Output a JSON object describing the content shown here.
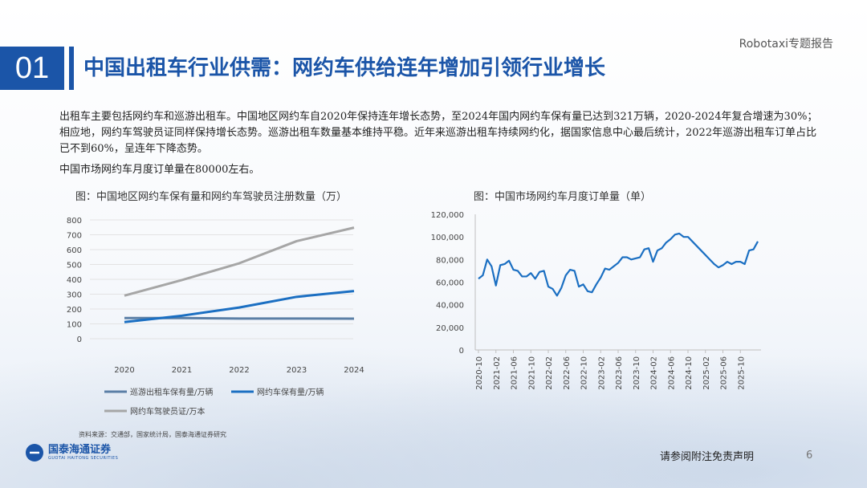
{
  "header": {
    "report_tag": "Robotaxi专题报告",
    "section_number": "01",
    "title": "中国出租车行业供需：网约车供给连年增加引领行业增长"
  },
  "body": {
    "paragraph1": "出租车主要包括网约车和巡游出租车。中国地区网约车自2020年保持连年增长态势，至2024年国内网约车保有量已达到321万辆，2020-2024年复合增速为30%；相应地，网约车驾驶员证同样保持增长态势。巡游出租车数量基本维持平稳。近年来巡游出租车持续网约化，据国家信息中心最后统计，2022年巡游出租车订单占比已不到60%，呈连年下降态势。",
    "paragraph2": "中国市场网约车月度订单量在80000左右。"
  },
  "chart_data": [
    {
      "type": "line",
      "title": "图：中国地区网约车保有量和网约车驾驶员注册数量（万）",
      "categories": [
        "2020",
        "2021",
        "2022",
        "2023",
        "2024"
      ],
      "ylim": [
        0,
        800
      ],
      "yticks": [
        "0",
        "100",
        "200",
        "300",
        "400",
        "500",
        "600",
        "700",
        "800"
      ],
      "grid": true,
      "legend_position": "bottom",
      "series": [
        {
          "name": "巡游出租车保有量/万辆",
          "color": "#5b7fa6",
          "values": [
            139,
            139,
            136,
            136,
            135
          ]
        },
        {
          "name": "网约车保有量/万辆",
          "color": "#1b6fc2",
          "values": [
            112,
            155,
            210,
            282,
            321
          ]
        },
        {
          "name": "网约车驾驶员证/万本",
          "color": "#a6a6a6",
          "values": [
            290,
            395,
            508,
            657,
            748
          ]
        }
      ]
    },
    {
      "type": "line",
      "title": "图：中国市场网约车月度订单量（单）",
      "ylim": [
        0,
        120000
      ],
      "yticks": [
        "0",
        "20,000",
        "40,000",
        "60,000",
        "80,000",
        "100,000",
        "120,000"
      ],
      "xtick_labels": [
        "2020-10",
        "2021-02",
        "2021-06",
        "2021-10",
        "2022-02",
        "2022-06",
        "2022-10",
        "2023-02",
        "2023-06",
        "2023-10",
        "2024-02",
        "2024-06",
        "2024-10",
        "2025-02",
        "2025-06",
        "2025-10"
      ],
      "grid": false,
      "series": [
        {
          "name": "",
          "color": "#1b6fc2",
          "values": [
            63000,
            66000,
            80000,
            74000,
            57000,
            75000,
            76000,
            79000,
            71000,
            70000,
            65000,
            65000,
            68000,
            63000,
            69000,
            70000,
            56000,
            54000,
            48000,
            55000,
            66000,
            71000,
            70000,
            56000,
            58000,
            52000,
            51000,
            58000,
            64000,
            72000,
            71000,
            74000,
            77000,
            82000,
            82000,
            80000,
            81000,
            82000,
            89000,
            90000,
            78000,
            88000,
            90000,
            95000,
            98000,
            102000,
            103000,
            100000,
            100000,
            96000,
            92000,
            88000,
            84000,
            80000,
            76000,
            73000,
            75000,
            78000,
            76000,
            78000,
            78000,
            76000,
            88000,
            89000,
            96000
          ]
        }
      ]
    }
  ],
  "footer": {
    "source": "资料来源：交通部，国家统计局，国泰海通证券研究",
    "logo_cn": "国泰海通证券",
    "logo_en": "GUOTAI HAITONG SECURITIES",
    "disclaimer": "请参阅附注免责声明",
    "page_number": "6"
  }
}
